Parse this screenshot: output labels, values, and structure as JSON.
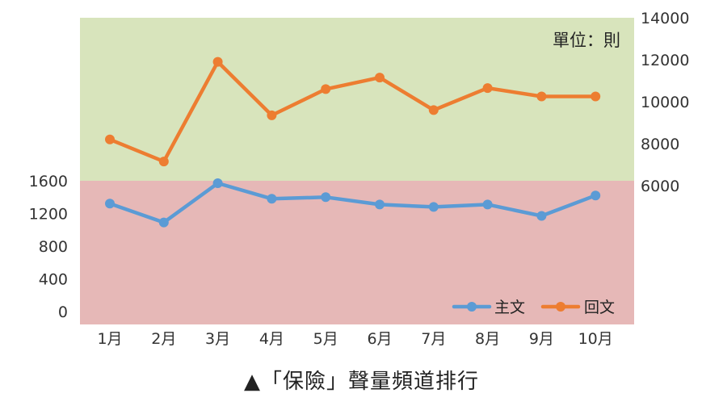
{
  "caption": "▲「保險」聲量頻道排行",
  "chart_data": {
    "type": "line",
    "unit_label": "單位：則",
    "categories": [
      "1月",
      "2月",
      "3月",
      "4月",
      "5月",
      "6月",
      "7月",
      "8月",
      "9月",
      "10月"
    ],
    "series": [
      {
        "name": "主文",
        "axis": "left",
        "color": "#5B9BD5",
        "values": [
          1320,
          1090,
          1570,
          1380,
          1400,
          1310,
          1280,
          1310,
          1170,
          1420
        ]
      },
      {
        "name": "回文",
        "axis": "right",
        "color": "#ED7D31",
        "values": [
          8200,
          7150,
          11900,
          9350,
          10600,
          11150,
          9600,
          10650,
          10250,
          10250
        ]
      }
    ],
    "left_axis": {
      "ticks": [
        0,
        400,
        800,
        1200,
        1600
      ],
      "range": [
        0,
        1600
      ]
    },
    "right_axis": {
      "ticks": [
        6000,
        8000,
        10000,
        12000,
        14000
      ],
      "range": [
        6000,
        14000
      ]
    },
    "background_bands": {
      "upper_color": "#D8E4BC",
      "lower_color": "#E6B8B7"
    },
    "legend_position": "bottom-right"
  }
}
